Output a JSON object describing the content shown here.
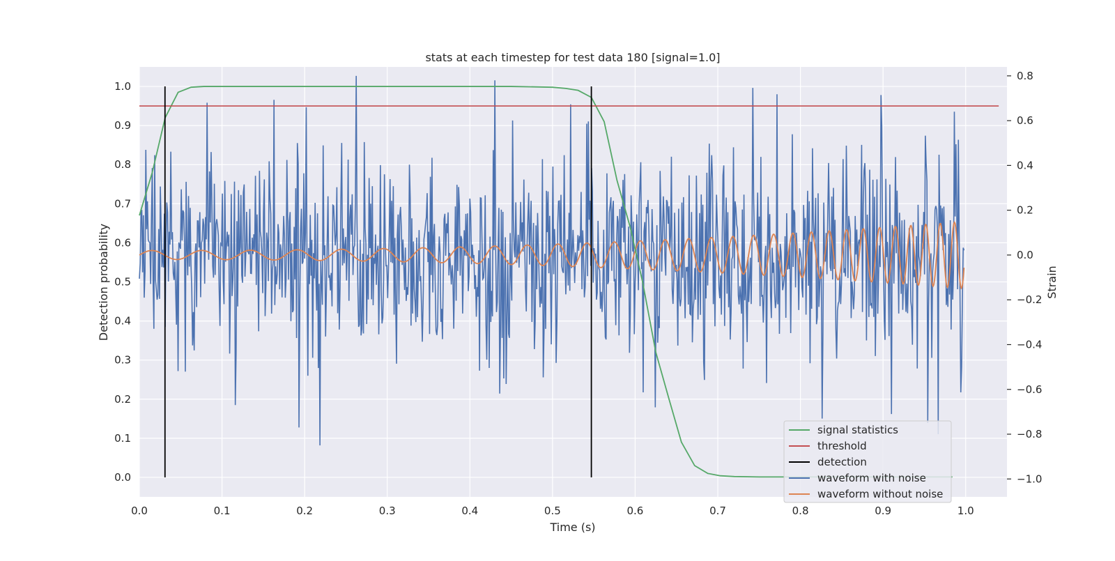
{
  "chart_data": {
    "type": "line",
    "title": "stats at each timestep for test data 180 [signal=1.0]",
    "xlabel": "Time (s)",
    "ylabel": "Detection probability",
    "y2label": "Strain",
    "xlim": [
      0.0,
      1.05
    ],
    "ylim": [
      -0.05,
      1.05
    ],
    "y2lim": [
      -1.08,
      0.84
    ],
    "xticks": [
      "0.0",
      "0.1",
      "0.2",
      "0.3",
      "0.4",
      "0.5",
      "0.6",
      "0.7",
      "0.8",
      "0.9",
      "1.0"
    ],
    "yticks": [
      "0.0",
      "0.1",
      "0.2",
      "0.3",
      "0.4",
      "0.5",
      "0.6",
      "0.7",
      "0.8",
      "0.9",
      "1.0"
    ],
    "y2ticks": [
      "−1.0",
      "−0.8",
      "−0.6",
      "−0.4",
      "−0.2",
      "0.0",
      "0.2",
      "0.4",
      "0.6",
      "0.8"
    ],
    "y2tick_values": [
      -1.0,
      -0.8,
      -0.6,
      -0.4,
      -0.2,
      0.0,
      0.2,
      0.4,
      0.6,
      0.8
    ],
    "grid": true,
    "legend_position": "lower-right",
    "colors": {
      "plot_background": "#eaeaf2",
      "grid": "#ffffff",
      "signal_statistics": "#55a868",
      "threshold": "#c44e52",
      "detection": "#000000",
      "waveform_with_noise": "#4c72b0",
      "waveform_without_noise": "#dd8452"
    },
    "series": [
      {
        "name": "signal statistics",
        "axis": "left",
        "x": [
          0.0,
          0.0156,
          0.0312,
          0.0469,
          0.0625,
          0.0781,
          0.1,
          0.2,
          0.3,
          0.4,
          0.45,
          0.5,
          0.516,
          0.531,
          0.547,
          0.5625,
          0.578,
          0.594,
          0.609,
          0.625,
          0.641,
          0.656,
          0.672,
          0.688,
          0.703,
          0.72,
          0.75,
          0.8,
          0.9,
          0.984
        ],
        "values": [
          0.67,
          0.78,
          0.92,
          0.985,
          0.998,
          1.0,
          1.0,
          1.0,
          1.0,
          1.0,
          1.0,
          0.998,
          0.995,
          0.99,
          0.972,
          0.91,
          0.76,
          0.64,
          0.5,
          0.32,
          0.2,
          0.09,
          0.03,
          0.01,
          0.004,
          0.002,
          0.001,
          0.001,
          0.001,
          0.001
        ]
      },
      {
        "name": "threshold",
        "axis": "left",
        "x": [
          0.0,
          1.04
        ],
        "values": [
          0.95,
          0.95
        ]
      },
      {
        "name": "detection",
        "axis": "left",
        "segments": [
          {
            "x": 0.031,
            "y": [
              0.0,
              1.0
            ]
          },
          {
            "x": 0.547,
            "y": [
              0.0,
              1.0
            ]
          }
        ]
      },
      {
        "name": "waveform with noise",
        "axis": "right",
        "sample_count": 1024,
        "noise_std": 0.22,
        "noise_clip": [
          -0.9,
          0.78
        ],
        "x_range": [
          0.0,
          0.998
        ],
        "notable_peaks": [
          {
            "x": 0.262,
            "strain": 0.8
          },
          {
            "x": 0.082,
            "strain": 0.68
          },
          {
            "x": 0.202,
            "strain": 0.66
          },
          {
            "x": 0.193,
            "strain": -0.77
          },
          {
            "x": 0.219,
            "strain": -0.85
          },
          {
            "x": 0.624,
            "strain": -0.68
          },
          {
            "x": 0.91,
            "strain": -0.71
          },
          {
            "x": 0.954,
            "strain": -0.75
          },
          {
            "x": 0.967,
            "strain": -0.8
          },
          {
            "x": 0.986,
            "strain": 0.64
          }
        ]
      },
      {
        "name": "waveform without noise",
        "axis": "right",
        "chirp": {
          "x_range": [
            0.0,
            0.998
          ],
          "amp_start": 0.02,
          "amp_end": 0.15,
          "freq_start_hz": 16.5,
          "freq_end_hz": 60.0
        }
      }
    ]
  }
}
